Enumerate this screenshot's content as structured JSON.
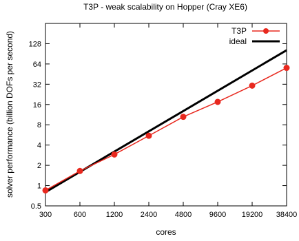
{
  "chart_data": {
    "type": "line",
    "title": "T3P - weak scalability on Hopper (Cray XE6)",
    "xlabel": "cores",
    "ylabel": "solver performance (billion DOFs per second)",
    "x_scale": "log2",
    "y_scale": "log2",
    "xlim": [
      300,
      38400
    ],
    "ylim": [
      0.5,
      256
    ],
    "x_ticks": [
      300,
      600,
      1200,
      2400,
      4800,
      9600,
      19200,
      38400
    ],
    "y_ticks": [
      0.5,
      1,
      2,
      4,
      8,
      16,
      32,
      64,
      128
    ],
    "grid": false,
    "legend_position": "top-right",
    "series": [
      {
        "name": "T3P",
        "color": "#e8281e",
        "marker": "circle",
        "x": [
          300,
          600,
          1200,
          2400,
          4800,
          9600,
          19200,
          38400
        ],
        "values": [
          0.85,
          1.65,
          2.9,
          5.5,
          10.5,
          17.5,
          30.5,
          56
        ]
      },
      {
        "name": "ideal",
        "color": "#000000",
        "marker": "none",
        "x": [
          300,
          38400
        ],
        "values": [
          0.8,
          102.4
        ]
      }
    ]
  }
}
